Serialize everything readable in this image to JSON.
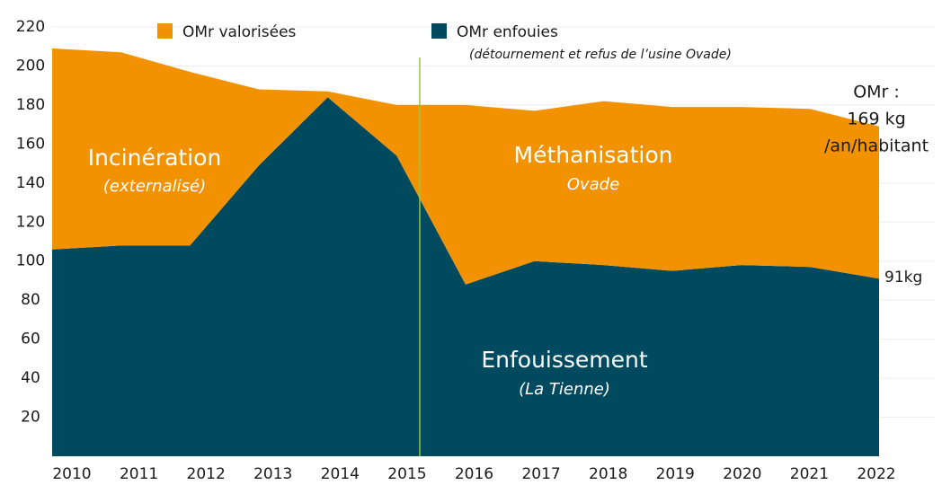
{
  "chart_data": {
    "type": "stacked_area",
    "categories": [
      "2010",
      "2011",
      "2012",
      "2013",
      "2014",
      "2015",
      "2016",
      "2017",
      "2018",
      "2019",
      "2020",
      "2021",
      "2022"
    ],
    "series": [
      {
        "name": "OMr enfouies",
        "color": "#004a60",
        "values": [
          106,
          108,
          108,
          149,
          184,
          154,
          88,
          100,
          98,
          95,
          98,
          97,
          91
        ]
      },
      {
        "name": "OMr valorisées",
        "color": "#f39200",
        "values": [
          103,
          99,
          89,
          39,
          3,
          26,
          92,
          77,
          84,
          84,
          81,
          81,
          78
        ]
      }
    ],
    "legend_note": "(détournement et refus de l’usine Ovade)",
    "ylim": [
      0,
      220
    ],
    "yticks": [
      20,
      40,
      60,
      80,
      100,
      120,
      140,
      160,
      180,
      200,
      220
    ],
    "grid": true,
    "annotations": {
      "incineration": "Incinération",
      "incineration_sub": "(externalisé)",
      "methanisation": "Méthanisation",
      "methanisation_sub": "Ovade",
      "enfouissement": "Enfouissement",
      "enfouissement_sub": "(La Tienne)",
      "total_1": "OMr :",
      "total_2": "169 kg",
      "total_3": "/an/habitant",
      "bottom_end": "91kg"
    }
  }
}
